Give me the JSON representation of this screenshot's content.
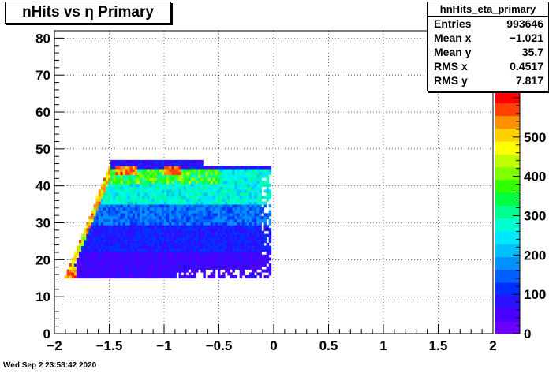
{
  "chart_data": {
    "type": "heatmap",
    "title": "nHits vs η Primary",
    "xlim": [
      -2,
      2
    ],
    "ylim": [
      0,
      82
    ],
    "x_ticks": [
      "−2",
      "−1.5",
      "−1",
      "−0.5",
      "0",
      "0.5",
      "1",
      "1.5",
      "2"
    ],
    "y_ticks": [
      "0",
      "10",
      "20",
      "30",
      "40",
      "50",
      "60",
      "70",
      "80"
    ],
    "grid": true,
    "colorbar": {
      "min": 0,
      "max": 620,
      "ticks": [
        "0",
        "100",
        "200",
        "300",
        "400",
        "500"
      ],
      "partial_label": "0"
    },
    "regions": [
      {
        "x": [
          -1.9,
          -0.05
        ],
        "y": [
          15,
          45
        ],
        "level": "low"
      },
      {
        "x": [
          -1.5,
          -0.1
        ],
        "y": [
          40,
          45
        ],
        "level": "high"
      },
      {
        "x": [
          -1.45,
          -1.25
        ],
        "y": [
          43,
          45
        ],
        "level": "max"
      },
      {
        "x": [
          -1.0,
          -0.85
        ],
        "y": [
          43,
          45
        ],
        "level": "max"
      },
      {
        "x": [
          -1.9,
          -1.8
        ],
        "y": [
          15,
          17
        ],
        "level": "max"
      }
    ]
  },
  "stats": {
    "name": "hnHits_eta_primary",
    "rows": [
      {
        "label": "Entries",
        "value": "993646"
      },
      {
        "label": "Mean x",
        "value": "−1.021"
      },
      {
        "label": "Mean y",
        "value": "35.7"
      },
      {
        "label": "RMS x",
        "value": "0.4517"
      },
      {
        "label": "RMS y",
        "value": "7.817"
      }
    ]
  },
  "footer": "Wed Sep  2 23:58:42 2020",
  "colors": {
    "palette": [
      "#6a00ff",
      "#4b00ff",
      "#2a10ff",
      "#0030ff",
      "#0060ff",
      "#0090ff",
      "#00c0ff",
      "#00e8ff",
      "#00ffd0",
      "#00ff90",
      "#00ff40",
      "#30ff00",
      "#80ff00",
      "#c0ff00",
      "#ffff00",
      "#ffd000",
      "#ff9000",
      "#ff4000",
      "#ff0000"
    ]
  }
}
